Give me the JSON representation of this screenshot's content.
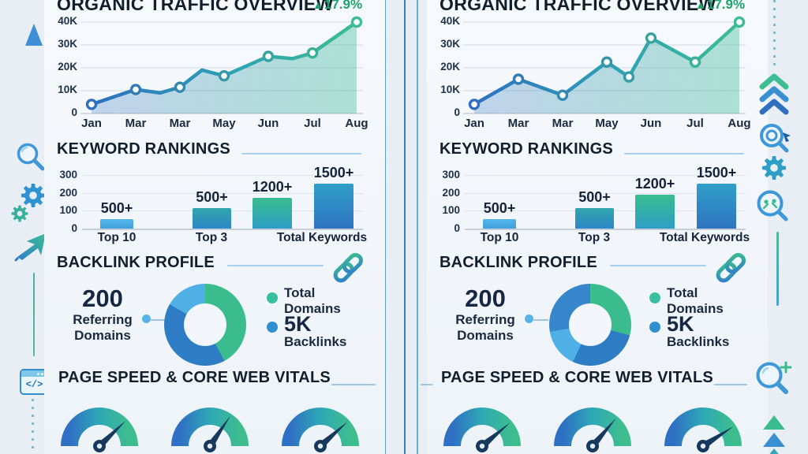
{
  "colors": {
    "page_bg": "#e8eef4",
    "card_bg": "#f4f8fb",
    "title_text": "#131e2d",
    "green_accent": "#1fa36c",
    "line_blue": "#2e6fc0",
    "line_teal": "#3cbd92",
    "grid": "#d9dfe7",
    "divider_blue": "#2f7fc4",
    "legend_teal_dot": "#38bfa0",
    "legend_blue_dot": "#2f8fd0",
    "needle": "#17395e"
  },
  "icons": {
    "code_window_label": "</>",
    "left_margin": [
      "growth-arrow-up-icon",
      "magnifier-icon",
      "gears-icon",
      "cursor-arrow-icon",
      "connector-line",
      "code-window-icon",
      "dotted-line"
    ],
    "right_margin": [
      "dotted-line",
      "triple-chevron-up-icon",
      "magnifier-target-cursor-icon",
      "gear-icon",
      "magnifier-analytics-icon",
      "connector-line",
      "magnifier-plus-icon",
      "triple-triangle-up-icon"
    ]
  },
  "panels": [
    {
      "name": "left",
      "traffic": {
        "title": "ORGANIC TRAFFIC OVERVIEW",
        "change_arrow": "▲",
        "change_value": "17.9%"
      },
      "keywords": {
        "title": "KEYWORD RANKINGS"
      },
      "backlink": {
        "title": "BACKLINK PROFILE",
        "stat_value": "200",
        "stat_line1": "Referring",
        "stat_line2": "Domains",
        "legend": [
          {
            "line1": "Total",
            "line2": "Domains"
          },
          {
            "value": "5K",
            "label": "Backlinks"
          }
        ]
      },
      "pagespeed": {
        "title": "PAGE SPEED & CORE WEB VITALS"
      }
    },
    {
      "name": "right",
      "traffic": {
        "title": "ORGANIC TRAFFIC OVERVIEW",
        "change_arrow": "▲",
        "change_value": "17.9%"
      },
      "keywords": {
        "title": "KEYWORD RANKINGS"
      },
      "backlink": {
        "title": "BACKLINK PROFILE",
        "stat_value": "200",
        "stat_line1": "Referring",
        "stat_line2": "Domains",
        "legend": [
          {
            "line1": "Total",
            "line2": "Domains"
          },
          {
            "value": "5K",
            "label": "Backlinks"
          }
        ]
      },
      "pagespeed": {
        "title": "PAGE SPEED & CORE WEB VITALS"
      }
    }
  ],
  "chart_data": [
    {
      "id": "organic-traffic-left",
      "type": "line",
      "title": "ORGANIC TRAFFIC OVERVIEW",
      "change": "+17.9%",
      "x_labels": [
        "Jan",
        "Mar",
        "Mar",
        "May",
        "Jun",
        "Jul",
        "Aug"
      ],
      "y_tick_labels": [
        "40K",
        "30K",
        "20K",
        "10K",
        "0"
      ],
      "y_gridlines_k": [
        40,
        30,
        20,
        10,
        0
      ],
      "ylim_k": [
        0,
        40
      ],
      "unit": "K visits",
      "points": [
        {
          "x": 0,
          "y_k": 4,
          "marker": true
        },
        {
          "x": 1,
          "y_k": 10.5,
          "marker": true
        },
        {
          "x": 1.55,
          "y_k": 9,
          "marker": false
        },
        {
          "x": 2,
          "y_k": 11.5,
          "marker": true
        },
        {
          "x": 2.5,
          "y_k": 19,
          "marker": false
        },
        {
          "x": 3,
          "y_k": 16.5,
          "marker": true
        },
        {
          "x": 4,
          "y_k": 25,
          "marker": true
        },
        {
          "x": 4.55,
          "y_k": 24,
          "marker": false
        },
        {
          "x": 5,
          "y_k": 26.5,
          "marker": true
        },
        {
          "x": 6,
          "y_k": 40,
          "marker": true
        }
      ]
    },
    {
      "id": "organic-traffic-right",
      "type": "line",
      "title": "ORGANIC TRAFFIC OVERVIEW",
      "change": "+17.9%",
      "x_labels": [
        "Jan",
        "Mar",
        "Mar",
        "May",
        "Jun",
        "Jul",
        "Aug"
      ],
      "y_tick_labels": [
        "40K",
        "30K",
        "20K",
        "10K",
        "0"
      ],
      "y_gridlines_k": [
        40,
        30,
        20,
        10,
        0
      ],
      "ylim_k": [
        0,
        40
      ],
      "unit": "K visits",
      "points": [
        {
          "x": 0,
          "y_k": 4,
          "marker": true
        },
        {
          "x": 1,
          "y_k": 15,
          "marker": true
        },
        {
          "x": 2,
          "y_k": 8,
          "marker": true
        },
        {
          "x": 3,
          "y_k": 22.5,
          "marker": true
        },
        {
          "x": 3.5,
          "y_k": 16,
          "marker": true
        },
        {
          "x": 4,
          "y_k": 33,
          "marker": true
        },
        {
          "x": 5,
          "y_k": 22.5,
          "marker": true
        },
        {
          "x": 6,
          "y_k": 40,
          "marker": true
        }
      ]
    },
    {
      "id": "keyword-rankings-left",
      "type": "bar",
      "title": "KEYWORD RANKINGS",
      "y_tick_labels": [
        "300",
        "200",
        "100",
        "0"
      ],
      "y_gridlines": [
        300,
        200,
        100,
        0
      ],
      "ylim": [
        0,
        300
      ],
      "categories": [
        "Top 10",
        "Top 3",
        "Total Keywords"
      ],
      "bars": [
        {
          "label": "500+",
          "value": 55,
          "colors": [
            "#55b6e8",
            "#3f9fdd"
          ]
        },
        {
          "label": "500+",
          "value": 115,
          "colors": [
            "#2fa6ab",
            "#2f86c8"
          ]
        },
        {
          "label": "1200+",
          "value": 170,
          "colors": [
            "#3bbd8e",
            "#2d9ec6"
          ]
        },
        {
          "label": "1500+",
          "value": 250,
          "colors": [
            "#2f9fc9",
            "#2f74c0"
          ]
        }
      ]
    },
    {
      "id": "keyword-rankings-right",
      "type": "bar",
      "title": "KEYWORD RANKINGS",
      "y_tick_labels": [
        "300",
        "200",
        "100",
        "0"
      ],
      "y_gridlines": [
        300,
        200,
        100,
        0
      ],
      "ylim": [
        0,
        300
      ],
      "categories": [
        "Top 10",
        "Top 3",
        "Total Keywords"
      ],
      "bars": [
        {
          "label": "500+",
          "value": 55,
          "colors": [
            "#55b6e8",
            "#3f9fdd"
          ]
        },
        {
          "label": "500+",
          "value": 115,
          "colors": [
            "#2fa6ab",
            "#2f86c8"
          ]
        },
        {
          "label": "1200+",
          "value": 190,
          "colors": [
            "#3bbd8e",
            "#2d9ec6"
          ]
        },
        {
          "label": "1500+",
          "value": 250,
          "colors": [
            "#2f9fc9",
            "#2f74c0"
          ]
        }
      ]
    },
    {
      "id": "backlink-donut-left",
      "type": "donut",
      "title": "BACKLINK PROFILE",
      "center_stat": {
        "value": "200",
        "label": "Referring Domains"
      },
      "legend": [
        {
          "label": "Total Domains",
          "color": "#38bfa0"
        },
        {
          "label": "5K Backlinks",
          "color": "#2f8fd0"
        }
      ],
      "segments": [
        {
          "color": "#3bbc8e",
          "deg": 152
        },
        {
          "color": "#2e7cc4",
          "deg": 148
        },
        {
          "color": "#4fb0e6",
          "deg": 60
        }
      ]
    },
    {
      "id": "backlink-donut-right",
      "type": "donut",
      "title": "BACKLINK PROFILE",
      "center_stat": {
        "value": "200",
        "label": "Referring Domains"
      },
      "legend": [
        {
          "label": "Total Domains",
          "color": "#38bfa0"
        },
        {
          "label": "5K Backlinks",
          "color": "#2f8fd0"
        }
      ],
      "segments": [
        {
          "color": "#3bbc8e",
          "deg": 105
        },
        {
          "color": "#2e7cc4",
          "deg": 100
        },
        {
          "color": "#4fb0e6",
          "deg": 55
        },
        {
          "color": "#3786cc",
          "deg": 100
        }
      ]
    },
    {
      "id": "core-web-vitals-left",
      "type": "gauge",
      "title": "PAGE SPEED & CORE WEB VITALS",
      "gauges": [
        {
          "needle_deg": 44
        },
        {
          "needle_deg": 56
        },
        {
          "needle_deg": 42
        }
      ]
    },
    {
      "id": "core-web-vitals-right",
      "type": "gauge",
      "title": "PAGE SPEED & CORE WEB VITALS",
      "gauges": [
        {
          "needle_deg": 40
        },
        {
          "needle_deg": 50
        },
        {
          "needle_deg": 33
        }
      ]
    }
  ]
}
